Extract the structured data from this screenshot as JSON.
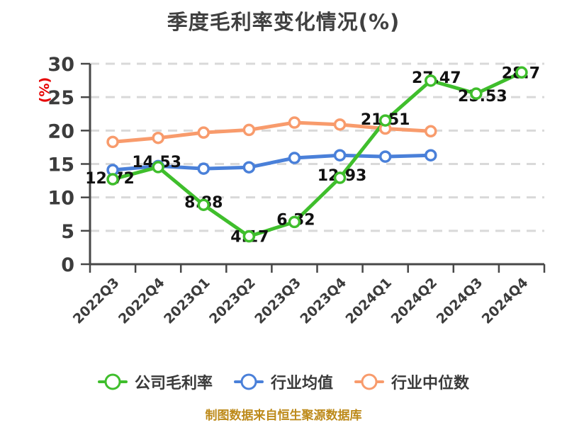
{
  "chart_data": {
    "type": "line",
    "title": "季度毛利率变化情况(%)",
    "ylabel": "(%)",
    "ylabel_color": "#e60000",
    "ylim": [
      0,
      30
    ],
    "ytick_step": 5,
    "ytick_labels": [
      "0",
      "5",
      "10",
      "15",
      "20",
      "25",
      "30"
    ],
    "grid": "horizontal-dashed",
    "legend_position": "bottom",
    "categories": [
      "2022Q3",
      "2022Q4",
      "2023Q1",
      "2023Q2",
      "2023Q3",
      "2023Q4",
      "2024Q1",
      "2024Q2",
      "2024Q3",
      "2024Q4"
    ],
    "series": [
      {
        "name": "公司毛利率",
        "color": "#3fbe2c",
        "values": [
          12.72,
          14.53,
          8.88,
          4.17,
          6.32,
          12.93,
          21.51,
          27.47,
          25.53,
          28.7
        ],
        "labels_shown": true
      },
      {
        "name": "行业均值",
        "color": "#4a80d9",
        "values": [
          14.1,
          14.7,
          14.3,
          14.5,
          15.9,
          16.3,
          16.1,
          16.3
        ],
        "labels_shown": false
      },
      {
        "name": "行业中位数",
        "color": "#f89b6c",
        "values": [
          18.3,
          18.9,
          19.7,
          20.1,
          21.2,
          20.9,
          20.3,
          19.9
        ],
        "labels_shown": false
      }
    ],
    "source_note": "制图数据来自恒生聚源数据库",
    "source_note_color": "#bd8a1a"
  }
}
